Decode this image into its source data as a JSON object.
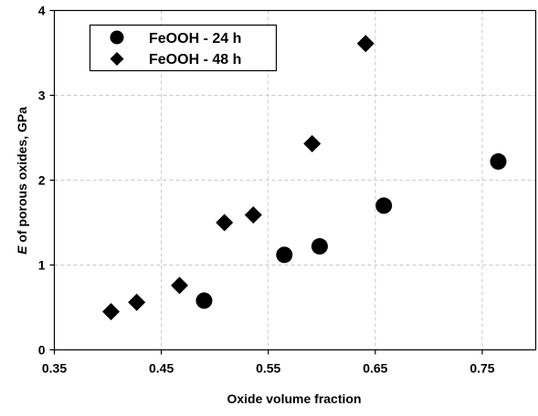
{
  "chart_data": {
    "type": "scatter",
    "title": "",
    "xlabel": "Oxide volume fraction",
    "ylabel_symbol": "E",
    "ylabel_rest": "of porous oxides, GPa",
    "xlim": [
      0.35,
      0.8
    ],
    "ylim": [
      0,
      4
    ],
    "xticks": [
      "0.35",
      "0.45",
      "0.55",
      "0.65",
      "0.75"
    ],
    "xtick_values": [
      0.35,
      0.45,
      0.55,
      0.65,
      0.75
    ],
    "yticks": [
      "0",
      "1",
      "2",
      "3",
      "4"
    ],
    "ytick_values": [
      0,
      1,
      2,
      3,
      4
    ],
    "grid": "dashed",
    "legend_position": "top-left",
    "series": [
      {
        "name": "FeOOH - 24 h",
        "marker": "circle",
        "color": "#000000",
        "points": [
          {
            "x": 0.49,
            "y": 0.58
          },
          {
            "x": 0.565,
            "y": 1.12
          },
          {
            "x": 0.598,
            "y": 1.22
          },
          {
            "x": 0.658,
            "y": 1.7
          },
          {
            "x": 0.765,
            "y": 2.22
          }
        ]
      },
      {
        "name": "FeOOH - 48 h",
        "marker": "diamond",
        "color": "#000000",
        "points": [
          {
            "x": 0.403,
            "y": 0.45
          },
          {
            "x": 0.427,
            "y": 0.56
          },
          {
            "x": 0.467,
            "y": 0.76
          },
          {
            "x": 0.509,
            "y": 1.5
          },
          {
            "x": 0.536,
            "y": 1.59
          },
          {
            "x": 0.591,
            "y": 2.43
          },
          {
            "x": 0.641,
            "y": 3.61
          }
        ]
      }
    ]
  }
}
